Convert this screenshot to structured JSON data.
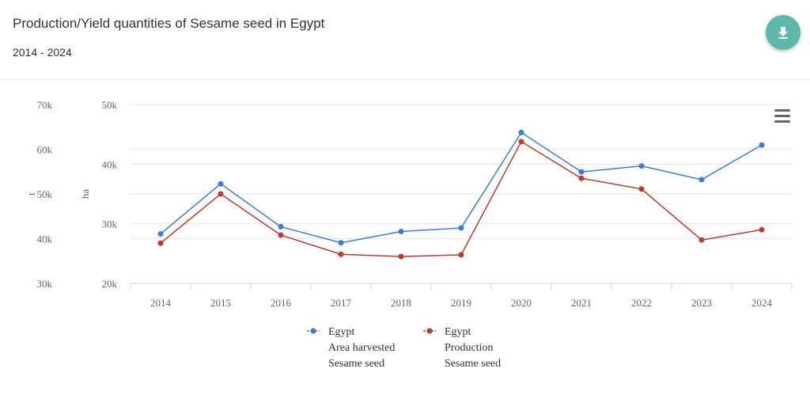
{
  "header": {
    "title": "Production/Yield quantities of Sesame seed in Egypt",
    "subtitle": "2014 - 2024"
  },
  "colors": {
    "accent": "#5bb8aa",
    "area": "#3d7bd6",
    "production": "#c0392b"
  },
  "chart_data": {
    "type": "line",
    "categories": [
      "2014",
      "2015",
      "2016",
      "2017",
      "2018",
      "2019",
      "2020",
      "2021",
      "2022",
      "2023",
      "2024"
    ],
    "axes": [
      {
        "label": "t",
        "ticks": [
          "30k",
          "40k",
          "50k",
          "60k",
          "70k"
        ],
        "range": [
          30000,
          70000
        ]
      },
      {
        "label": "ha",
        "ticks": [
          "20k",
          "30k",
          "40k",
          "50k"
        ],
        "range": [
          20000,
          50000
        ]
      }
    ],
    "series": [
      {
        "name": "Egypt Area harvested Sesame seed",
        "legend": [
          "Egypt",
          "Area harvested",
          "Sesame seed"
        ],
        "axis": 1,
        "color": "#3d7bd6",
        "values": [
          28300,
          36700,
          29500,
          26800,
          28700,
          29300,
          45300,
          38700,
          39700,
          37400,
          43200
        ]
      },
      {
        "name": "Egypt Production Sesame seed",
        "legend": [
          "Egypt",
          "Production",
          "Sesame seed"
        ],
        "axis": 0,
        "color": "#c0392b",
        "values": [
          39000,
          50000,
          40800,
          36500,
          36000,
          36400,
          61700,
          53500,
          51100,
          39700,
          42000
        ]
      }
    ],
    "legend_placement": "bottom"
  }
}
